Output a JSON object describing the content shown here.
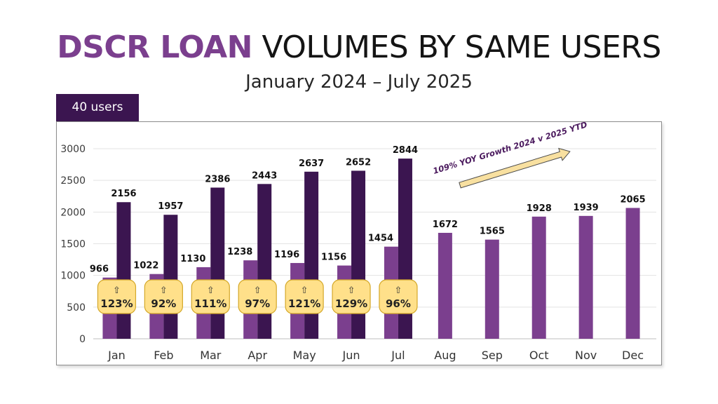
{
  "title": {
    "highlight": "DSCR LOAN",
    "rest": " VOLUMES BY SAME USERS"
  },
  "subtitle": "January 2024 – July 2025",
  "users_tab": "40 users",
  "colors": {
    "series_2024": "#7b3f8e",
    "series_2025": "#3b1550",
    "tab_bg": "#3b1550",
    "title_highlight": "#7b3f8e",
    "growth_box_bg": "#ffe08a",
    "growth_box_border": "#d4a829",
    "arrow_fill": "#f8e0a0",
    "arrow_stroke": "#4a4a4a",
    "annotation_text": "#4b1a5e"
  },
  "chart_data": {
    "type": "bar",
    "categories": [
      "Jan",
      "Feb",
      "Mar",
      "Apr",
      "May",
      "Jun",
      "Jul",
      "Aug",
      "Sep",
      "Oct",
      "Nov",
      "Dec"
    ],
    "series": [
      {
        "values": [
          966,
          1022,
          1130,
          1238,
          1196,
          1156,
          1454,
          1672,
          1565,
          1928,
          1939,
          2065
        ]
      },
      {
        "values": [
          2156,
          1957,
          2386,
          2443,
          2637,
          2652,
          2844,
          null,
          null,
          null,
          null,
          null
        ]
      }
    ],
    "growth": [
      {
        "arrow": "⇧",
        "pct": "123%"
      },
      {
        "arrow": "⇧",
        "pct": "92%"
      },
      {
        "arrow": "⇧",
        "pct": "111%"
      },
      {
        "arrow": "⇧",
        "pct": "97%"
      },
      {
        "arrow": "⇧",
        "pct": "121%"
      },
      {
        "arrow": "⇧",
        "pct": "129%"
      },
      {
        "arrow": "⇧",
        "pct": "96%"
      }
    ],
    "annotation": "109% YOY Growth 2024 v 2025 YTD",
    "yticks": [
      0,
      500,
      1000,
      1500,
      2000,
      2500,
      3000
    ],
    "ylim": [
      0,
      3000
    ],
    "grid": true,
    "legend": "none"
  }
}
